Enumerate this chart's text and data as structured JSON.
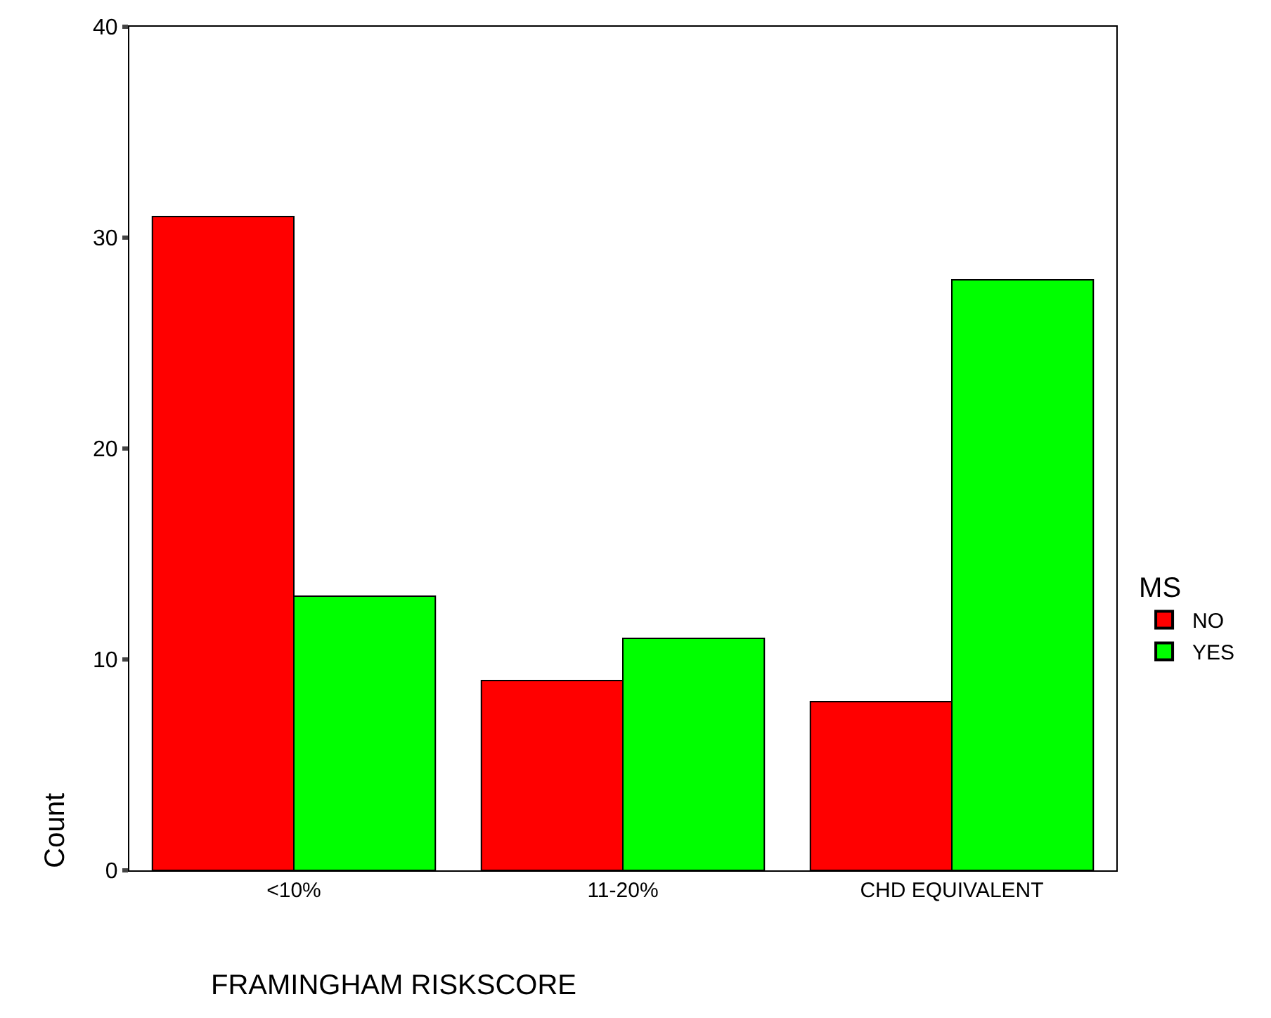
{
  "chart_data": {
    "type": "bar",
    "xlabel": "FRAMINGHAM RISKSCORE",
    "ylabel": "Count",
    "legend_title": "MS",
    "categories": [
      "<10%",
      "11-20%",
      "CHD EQUIVALENT"
    ],
    "series": [
      {
        "name": "NO",
        "color": "#ff0000",
        "values": [
          31,
          9,
          8
        ]
      },
      {
        "name": "YES",
        "color": "#00ff00",
        "values": [
          13,
          11,
          28
        ]
      }
    ],
    "ylim": [
      0,
      40
    ],
    "yticks": [
      0,
      10,
      20,
      30,
      40
    ],
    "legend": "right"
  }
}
